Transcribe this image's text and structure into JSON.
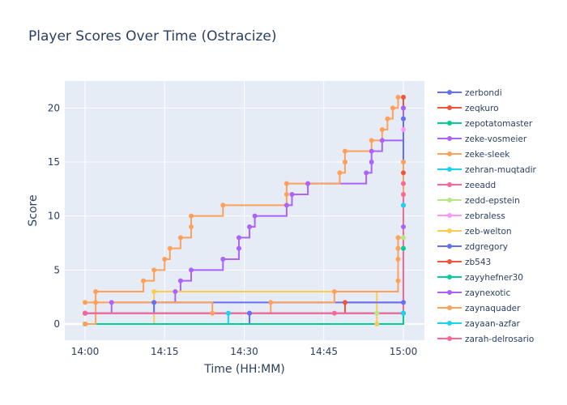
{
  "chart_data": {
    "type": "line",
    "title": "Player Scores Over Time (Ostracize)",
    "xlabel": "Time (HH:MM)",
    "ylabel": "Score",
    "x_axis": {
      "start": "14:00",
      "end": "15:00",
      "ticks": [
        "14:00",
        "14:15",
        "14:30",
        "14:45",
        "15:00"
      ]
    },
    "y_axis": {
      "range": [
        -1.5,
        22.5
      ],
      "ticks": [
        0,
        5,
        10,
        15,
        20
      ]
    },
    "line_shape": "step",
    "grid": true,
    "legend": {
      "placement": "right"
    },
    "series": [
      {
        "name": "zerbondi",
        "color": "#636efa",
        "points": [
          [
            "14:00",
            0
          ],
          [
            "14:31",
            1
          ],
          [
            "15:00",
            2
          ],
          [
            "15:00",
            20
          ]
        ]
      },
      {
        "name": "zeqkuro",
        "color": "#EF553B",
        "points": [
          [
            "14:00",
            1
          ],
          [
            "14:49",
            2
          ],
          [
            "15:00",
            1
          ],
          [
            "15:00",
            21
          ]
        ]
      },
      {
        "name": "zepotatomaster",
        "color": "#00cc96",
        "points": [
          [
            "14:00",
            0
          ],
          [
            "15:00",
            1
          ],
          [
            "15:00",
            7
          ]
        ]
      },
      {
        "name": "zeke-vosmeier",
        "color": "#ab63fa",
        "points": [
          [
            "14:00",
            1
          ],
          [
            "14:05",
            2
          ],
          [
            "14:17",
            3
          ],
          [
            "14:18",
            4
          ],
          [
            "14:20",
            5
          ],
          [
            "14:26",
            6
          ],
          [
            "14:29",
            7
          ],
          [
            "14:29",
            8
          ],
          [
            "14:31",
            9
          ],
          [
            "14:32",
            10
          ],
          [
            "14:38",
            11
          ],
          [
            "14:39",
            12
          ],
          [
            "14:42",
            13
          ],
          [
            "14:53",
            14
          ],
          [
            "14:54",
            15
          ],
          [
            "14:54",
            16
          ],
          [
            "14:56",
            17
          ],
          [
            "15:00",
            20
          ]
        ]
      },
      {
        "name": "zeke-sleek",
        "color": "#FFA15A",
        "points": [
          [
            "14:00",
            2
          ],
          [
            "14:02",
            3
          ],
          [
            "14:11",
            4
          ],
          [
            "14:13",
            5
          ],
          [
            "14:15",
            6
          ],
          [
            "14:16",
            7
          ],
          [
            "14:18",
            8
          ],
          [
            "14:20",
            9
          ],
          [
            "14:20",
            10
          ],
          [
            "14:26",
            11
          ],
          [
            "14:38",
            12
          ],
          [
            "14:38",
            13
          ],
          [
            "14:48",
            14
          ],
          [
            "14:49",
            15
          ],
          [
            "14:49",
            16
          ],
          [
            "14:54",
            17
          ],
          [
            "14:56",
            18
          ],
          [
            "14:57",
            19
          ],
          [
            "14:58",
            20
          ],
          [
            "14:59",
            21
          ]
        ]
      },
      {
        "name": "zehran-muqtadir",
        "color": "#19d3f3",
        "points": [
          [
            "14:00",
            0
          ],
          [
            "14:27",
            1
          ],
          [
            "15:00",
            1
          ]
        ]
      },
      {
        "name": "zeeadd",
        "color": "#FF6692",
        "points": [
          [
            "14:00",
            1
          ],
          [
            "14:47",
            1
          ],
          [
            "15:00",
            13
          ]
        ]
      },
      {
        "name": "zedd-epstein",
        "color": "#B6E880",
        "points": [
          [
            "14:55",
            1
          ],
          [
            "15:00",
            8
          ]
        ]
      },
      {
        "name": "zebraless",
        "color": "#FF97FF",
        "points": [
          [
            "14:00",
            1
          ],
          [
            "15:00",
            18
          ]
        ]
      },
      {
        "name": "zeb-welton",
        "color": "#FECB52",
        "points": [
          [
            "14:00",
            0
          ],
          [
            "14:13",
            3
          ],
          [
            "14:55",
            0
          ],
          [
            "15:00",
            19
          ]
        ]
      },
      {
        "name": "zdgregory",
        "color": "#636efa",
        "points": [
          [
            "14:00",
            1
          ],
          [
            "14:13",
            2
          ],
          [
            "15:00",
            19
          ]
        ]
      },
      {
        "name": "zb543",
        "color": "#EF553B",
        "points": [
          [
            "14:00",
            1
          ],
          [
            "15:00",
            14
          ]
        ]
      },
      {
        "name": "zayyhefner30",
        "color": "#00cc96",
        "points": [
          [
            "14:00",
            0
          ],
          [
            "15:00",
            11
          ]
        ]
      },
      {
        "name": "zaynexotic",
        "color": "#ab63fa",
        "points": [
          [
            "14:00",
            1
          ],
          [
            "15:00",
            9
          ]
        ]
      },
      {
        "name": "zaynaquader",
        "color": "#FFA15A",
        "points": [
          [
            "14:00",
            0
          ],
          [
            "14:02",
            2
          ],
          [
            "14:24",
            1
          ],
          [
            "14:35",
            2
          ],
          [
            "14:47",
            3
          ],
          [
            "14:59",
            4
          ],
          [
            "14:59",
            6
          ],
          [
            "14:59",
            7
          ],
          [
            "14:59",
            8
          ],
          [
            "15:00",
            15
          ]
        ]
      },
      {
        "name": "zayaan-azfar",
        "color": "#19d3f3",
        "points": [
          [
            "14:00",
            1
          ],
          [
            "15:00",
            11
          ]
        ]
      },
      {
        "name": "zarah-delrosario",
        "color": "#FF6692",
        "points": [
          [
            "14:00",
            1
          ],
          [
            "15:00",
            12
          ]
        ]
      }
    ]
  }
}
